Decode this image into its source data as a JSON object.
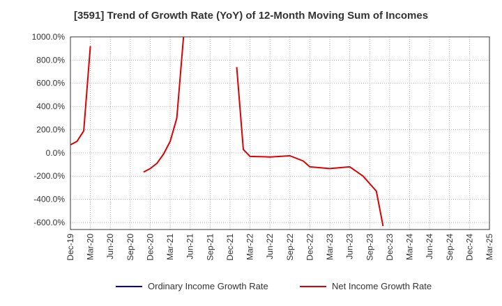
{
  "title": "[3591]  Trend of Growth Rate (YoY) of 12-Month Moving Sum of Incomes",
  "colors": {
    "ordinary": "#0000cc",
    "net": "#dd0000"
  },
  "chart_data": {
    "type": "line",
    "title": "[3591]  Trend of Growth Rate (YoY) of 12-Month Moving Sum of Incomes",
    "xlabel": "",
    "ylabel": "",
    "ylim": [
      -660,
      1000
    ],
    "yticks": [
      1000,
      800,
      600,
      400,
      200,
      0,
      -200,
      -400,
      -600
    ],
    "ytick_labels": [
      "1000.0%",
      "800.0%",
      "600.0%",
      "400.0%",
      "200.0%",
      "0.0%",
      "-200.0%",
      "-400.0%",
      "-600.0%"
    ],
    "xticks": [
      "Dec-19",
      "Mar-20",
      "Jun-20",
      "Sep-20",
      "Dec-20",
      "Mar-21",
      "Jun-21",
      "Sep-21",
      "Dec-21",
      "Mar-22",
      "Jun-22",
      "Sep-22",
      "Dec-22",
      "Mar-23",
      "Jun-23",
      "Sep-23",
      "Dec-23",
      "Mar-24",
      "Jun-24",
      "Sep-24",
      "Dec-24",
      "Mar-25"
    ],
    "grid": true,
    "legend_position": "bottom",
    "series": [
      {
        "name": "Ordinary Income Growth Rate",
        "color": "#0000cc",
        "points": []
      },
      {
        "name": "Net Income Growth Rate",
        "color": "#dd0000",
        "points": [
          [
            "2019-12",
            70
          ],
          [
            "2020-01",
            100
          ],
          [
            "2020-02",
            190
          ],
          [
            "2020-03",
            920
          ],
          null,
          [
            "2020-11",
            -165
          ],
          [
            "2020-12",
            -135
          ],
          [
            "2021-01",
            -90
          ],
          [
            "2021-02",
            -10
          ],
          [
            "2021-03",
            100
          ],
          [
            "2021-04",
            300
          ],
          [
            "2021-05",
            1000
          ],
          null,
          [
            "2022-01",
            740
          ],
          [
            "2022-02",
            30
          ],
          [
            "2022-03",
            -30
          ],
          [
            "2022-06",
            -35
          ],
          [
            "2022-09",
            -25
          ],
          [
            "2022-11",
            -70
          ],
          [
            "2022-12",
            -120
          ],
          [
            "2023-03",
            -135
          ],
          [
            "2023-06",
            -120
          ],
          [
            "2023-08",
            -200
          ],
          [
            "2023-10",
            -330
          ],
          [
            "2023-11",
            -630
          ]
        ]
      }
    ]
  }
}
